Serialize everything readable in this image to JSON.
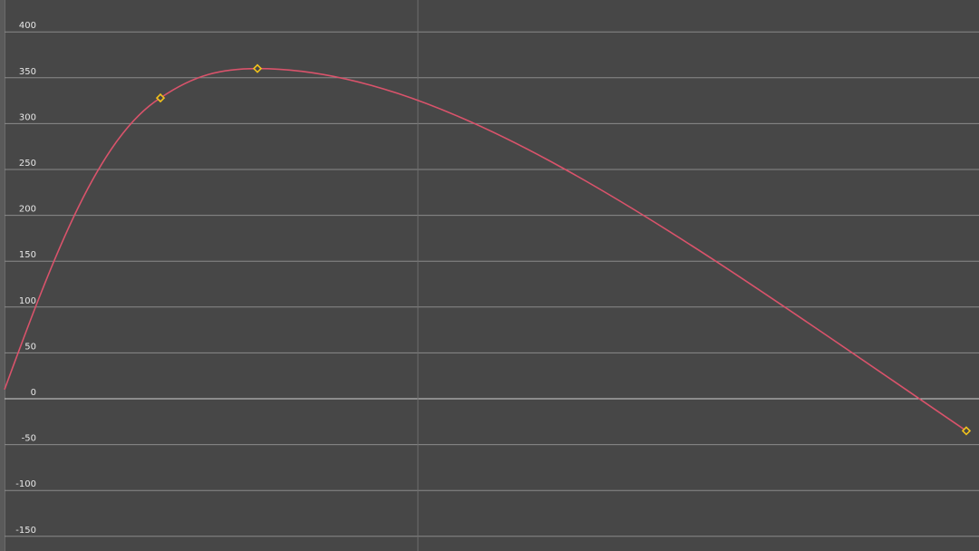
{
  "graph_editor": {
    "y_ticks": [
      400,
      350,
      300,
      250,
      200,
      150,
      100,
      50,
      0,
      -50,
      -100,
      -150
    ],
    "curve_color": "#d9536b",
    "keyframe_color": "#f2c21b",
    "grid_color": "#8a8a8a",
    "zero_line_color": "#d0d0d0",
    "background_color": "#474747",
    "curve_entry_value": 10,
    "keyframes": [
      {
        "value": 328
      },
      {
        "value": 360
      },
      {
        "value": -35
      }
    ]
  }
}
